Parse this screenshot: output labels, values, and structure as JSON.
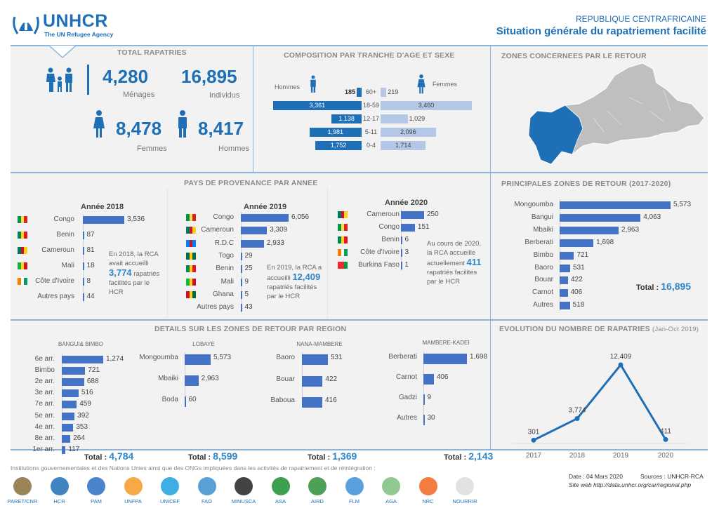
{
  "header": {
    "logo_text": "UNHCR",
    "logo_tagline": "The UN Refugee Agency",
    "country": "REPUBLIQUE CENTRAFRICAINE",
    "title": "Situation générale du rapatriement facilité"
  },
  "colors": {
    "accent": "#1f6fb7",
    "bar": "#4472c4",
    "men": "#1f6fb7",
    "women": "#b4c7e7",
    "panel": "#f2f2f2"
  },
  "total": {
    "title": "TOTAL RAPATRIES",
    "menages": "4,280",
    "menages_label": "Ménages",
    "individus": "16,895",
    "individus_label": "Individus",
    "femmes": "8,478",
    "femmes_label": "Femmes",
    "hommes": "8,417",
    "hommes_label": "Hommes"
  },
  "composition": {
    "title": "COMPOSITION PAR TRANCHE D'AGE ET SEXE",
    "men_label": "Hommes",
    "women_label": "Femmes",
    "rows": [
      {
        "age": "60+",
        "men": 185,
        "women": 219,
        "men_t": "185",
        "women_t": "219"
      },
      {
        "age": "18-59",
        "men": 3361,
        "women": 3460,
        "men_t": "3,361",
        "women_t": "3,460"
      },
      {
        "age": "12-17",
        "men": 1138,
        "women": 1029,
        "men_t": "1,138",
        "women_t": "1,029"
      },
      {
        "age": "5-11",
        "men": 1981,
        "women": 2096,
        "men_t": "1,981",
        "women_t": "2,096"
      },
      {
        "age": "0-4",
        "men": 1752,
        "women": 1714,
        "men_t": "1,752",
        "women_t": "1,714"
      }
    ]
  },
  "map": {
    "title": "ZONES CONCERNEES PAR LE RETOUR"
  },
  "provenance": {
    "title": "PAYS DE PROVENANCE PAR ANNEE",
    "y2018": {
      "title": "Année 2018",
      "items": [
        {
          "label": "Congo",
          "value": 3536,
          "text": "3,536",
          "flag": "flag-congo"
        },
        {
          "label": "Benin",
          "value": 87,
          "text": "87",
          "flag": "flag-benin"
        },
        {
          "label": "Cameroun",
          "value": 81,
          "text": "81",
          "flag": "flag-cameroun"
        },
        {
          "label": "Mali",
          "value": 18,
          "text": "18",
          "flag": "flag-mali"
        },
        {
          "label": "Côte d'Ivoire",
          "value": 8,
          "text": "8",
          "flag": "flag-cote-divoire"
        },
        {
          "label": "Autres pays",
          "value": 44,
          "text": "44",
          "flag": ""
        }
      ],
      "note_pre": "En 2018, la RCA avait accueilli",
      "note_num": "3,774",
      "note_post": "rapatriés facilités par le HCR"
    },
    "y2019": {
      "title": "Année 2019",
      "items": [
        {
          "label": "Congo",
          "value": 6056,
          "text": "6,056",
          "flag": "flag-congo"
        },
        {
          "label": "Cameroun",
          "value": 3309,
          "text": "3,309",
          "flag": "flag-cameroun"
        },
        {
          "label": "R.D.C",
          "value": 2933,
          "text": "2,933",
          "flag": "flag-rdc"
        },
        {
          "label": "Togo",
          "value": 29,
          "text": "29",
          "flag": "flag-togo"
        },
        {
          "label": "Benin",
          "value": 25,
          "text": "25",
          "flag": "flag-benin"
        },
        {
          "label": "Mali",
          "value": 9,
          "text": "9",
          "flag": "flag-mali"
        },
        {
          "label": "Ghana",
          "value": 5,
          "text": "5",
          "flag": "flag-ghana"
        },
        {
          "label": "Autres pays",
          "value": 43,
          "text": "43",
          "flag": ""
        }
      ],
      "note_pre": "En 2019, la RCA a accueilli",
      "note_num": "12,409",
      "note_post": "rapatriés facilités par le HCR"
    },
    "y2020": {
      "title": "Année 2020",
      "items": [
        {
          "label": "Cameroun",
          "value": 250,
          "text": "250",
          "flag": "flag-cameroun"
        },
        {
          "label": "Congo",
          "value": 151,
          "text": "151",
          "flag": "flag-congo"
        },
        {
          "label": "Benin",
          "value": 6,
          "text": "6",
          "flag": "flag-benin"
        },
        {
          "label": "Côte d'Ivoire",
          "value": 3,
          "text": "3",
          "flag": "flag-cote-divoire"
        },
        {
          "label": "Burkina Faso",
          "value": 1,
          "text": "1",
          "flag": "flag-burkina-faso"
        }
      ],
      "note_pre": "Au cours de 2020, la RCA accueille actuellement",
      "note_num": "411",
      "note_post": "rapatriés facilités par le HCR"
    }
  },
  "zones": {
    "title": "PRINCIPALES ZONES DE RETOUR (2017-2020)",
    "items": [
      {
        "label": "Mongoumba",
        "value": 5573,
        "text": "5,573"
      },
      {
        "label": "Bangui",
        "value": 4063,
        "text": "4,063"
      },
      {
        "label": "Mbaiki",
        "value": 2963,
        "text": "2,963"
      },
      {
        "label": "Berberati",
        "value": 1698,
        "text": "1,698"
      },
      {
        "label": "Bimbo",
        "value": 721,
        "text": "721"
      },
      {
        "label": "Baoro",
        "value": 531,
        "text": "531"
      },
      {
        "label": "Bouar",
        "value": 422,
        "text": "422"
      },
      {
        "label": "Carnot",
        "value": 406,
        "text": "406"
      },
      {
        "label": "Autres",
        "value": 518,
        "text": "518"
      }
    ],
    "total_label": "Total :",
    "total": "16,895"
  },
  "details": {
    "title": "DETAILS SUR LES ZONES DE RETOUR PAR REGION",
    "bangui": {
      "title": "BANGUI& BIMBO",
      "items": [
        {
          "label": "6e arr.",
          "value": 1274,
          "text": "1,274"
        },
        {
          "label": "Bimbo",
          "value": 721,
          "text": "721"
        },
        {
          "label": "2e arr.",
          "value": 688,
          "text": "688"
        },
        {
          "label": "3e arr.",
          "value": 516,
          "text": "516"
        },
        {
          "label": "7e arr.",
          "value": 459,
          "text": "459"
        },
        {
          "label": "5e arr.",
          "value": 392,
          "text": "392"
        },
        {
          "label": "4e arr.",
          "value": 353,
          "text": "353"
        },
        {
          "label": "8e arr.",
          "value": 264,
          "text": "264"
        },
        {
          "label": "1er arr.",
          "value": 117,
          "text": "117"
        }
      ],
      "total_label": "Total :",
      "total": "4,784"
    },
    "lobaye": {
      "title": "LOBAYE",
      "items": [
        {
          "label": "Mongoumba",
          "value": 5573,
          "text": "5,573"
        },
        {
          "label": "Mbaiki",
          "value": 2963,
          "text": "2,963"
        },
        {
          "label": "Boda",
          "value": 60,
          "text": "60"
        }
      ],
      "total_label": "Total :",
      "total": "8,599"
    },
    "nana": {
      "title": "NANA-MAMBERE",
      "items": [
        {
          "label": "Baoro",
          "value": 531,
          "text": "531"
        },
        {
          "label": "Bouar",
          "value": 422,
          "text": "422"
        },
        {
          "label": "Baboua",
          "value": 416,
          "text": "416"
        }
      ],
      "total_label": "Total :",
      "total": "1,369"
    },
    "mambere": {
      "title": "MAMBERE-KADEI",
      "items": [
        {
          "label": "Berberati",
          "value": 1698,
          "text": "1,698"
        },
        {
          "label": "Carnot",
          "value": 406,
          "text": "406"
        },
        {
          "label": "Gadzi",
          "value": 9,
          "text": "9"
        },
        {
          "label": "Autres",
          "value": 30,
          "text": "30"
        }
      ],
      "total_label": "Total :",
      "total": "2,143"
    }
  },
  "chart_data": {
    "type": "line",
    "title": "EVOLUTION DU NOMBRE DE RAPATRIES",
    "subtitle": "(Jan-Oct 2019)",
    "categories": [
      "2017",
      "2018",
      "2019",
      "2020"
    ],
    "values": [
      301,
      3774,
      12409,
      411
    ],
    "labels": [
      "301",
      "3,774",
      "12,409",
      "411"
    ],
    "grid": false,
    "color": "#1f6fb7"
  },
  "footer": {
    "partners_text": "Institutions gouvernementales et des Nations Unies ainsi que des ONGs impliquées dans les activités de rapatriement et de réintégration :",
    "partners": [
      {
        "name": "PARET/CNR",
        "color": "#8a6d3b"
      },
      {
        "name": "HCR",
        "color": "#1f6fb7"
      },
      {
        "name": "PAM",
        "color": "#2a6fc2"
      },
      {
        "name": "UNFPA",
        "color": "#f59a23"
      },
      {
        "name": "UNICEF",
        "color": "#1ca0e0"
      },
      {
        "name": "FAO",
        "color": "#3c8fd0"
      },
      {
        "name": "MINUSCA",
        "color": "#222222"
      },
      {
        "name": "ASA",
        "color": "#1a8f2f"
      },
      {
        "name": "AIRD",
        "color": "#2f8f3a"
      },
      {
        "name": "FLM",
        "color": "#3d8fd6"
      },
      {
        "name": "AGA",
        "color": "#7fbf7f"
      },
      {
        "name": "NRC",
        "color": "#f26522"
      },
      {
        "name": "NOURRIR",
        "color": "#dddddd"
      }
    ],
    "date": "Date : 04 Mars 2020",
    "sources": "Sources : UNHCR-RCA",
    "website": "Site web http://data.unhcr.org/car/regional.php"
  }
}
